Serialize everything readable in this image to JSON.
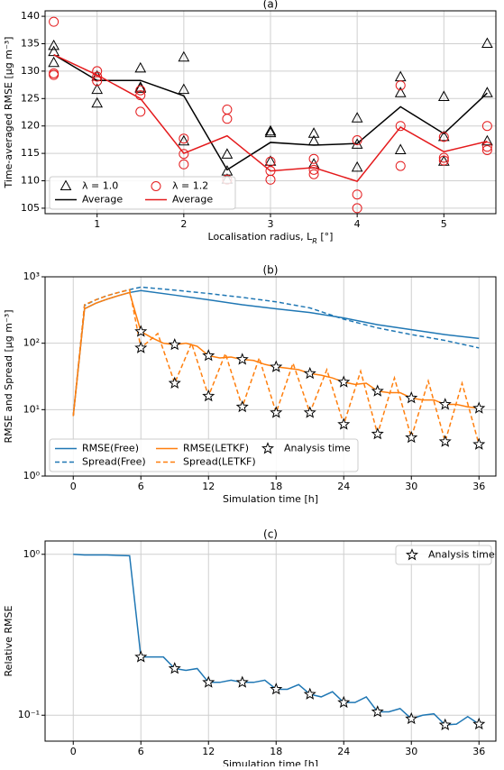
{
  "chart_data": [
    {
      "type": "line",
      "title": "(a)",
      "x_label": "Localisation radius, L_R [°]",
      "y_label": "Time-averaged RMSE [μg m⁻³]",
      "xlim": [
        0.4,
        5.6
      ],
      "ylim": [
        104,
        141
      ],
      "xticks": [
        1,
        2,
        3,
        4,
        5
      ],
      "yticks": [
        105,
        110,
        115,
        120,
        125,
        130,
        135,
        140
      ],
      "grid": true,
      "log": false,
      "legend_loc": "lower left",
      "series": [
        {
          "name": "λ = 1.0",
          "mode": "markers",
          "marker": "triangle",
          "color": "#000000",
          "x": [
            0.5,
            0.5,
            0.5,
            1,
            1,
            1,
            1.5,
            1.5,
            1.5,
            2,
            2,
            2,
            2.5,
            2.5,
            2.5,
            3,
            3,
            3,
            3.5,
            3.5,
            3.5,
            4,
            4,
            4,
            4.5,
            4.5,
            4.5,
            5,
            5,
            5,
            5.5,
            5.5,
            5.5
          ],
          "values": [
            134.6,
            133.5,
            131.5,
            129.0,
            126.6,
            124.1,
            130.5,
            127.0,
            126.8,
            132.5,
            126.6,
            117.2,
            114.8,
            111.7,
            110.2,
            119.0,
            118.7,
            113.5,
            118.6,
            117.2,
            113.0,
            121.4,
            116.6,
            112.4,
            128.9,
            126.0,
            115.6,
            125.3,
            118.0,
            113.5,
            135.0,
            126.0,
            117.2
          ]
        },
        {
          "name": "Average",
          "mode": "lines",
          "color": "#000000",
          "x": [
            0.5,
            1,
            1.5,
            2,
            2.5,
            3,
            3.5,
            4,
            4.5,
            5,
            5.5
          ],
          "values": [
            133.0,
            128.3,
            128.3,
            125.5,
            112.0,
            117.0,
            116.5,
            116.8,
            123.5,
            118.6,
            126.0
          ]
        },
        {
          "name": "λ = 1.2",
          "mode": "markers",
          "marker": "circle",
          "color": "#e41a1c",
          "x": [
            0.5,
            0.5,
            0.5,
            1,
            1,
            1,
            1.5,
            1.5,
            1.5,
            2,
            2,
            2,
            2.5,
            2.5,
            2.5,
            3,
            3,
            3,
            3.5,
            3.5,
            3.5,
            4,
            4,
            4,
            4.5,
            4.5,
            4.5,
            5,
            5,
            5,
            5.5,
            5.5,
            5.5
          ],
          "values": [
            139.0,
            129.6,
            129.3,
            130.0,
            129.0,
            128.2,
            126.5,
            125.6,
            122.6,
            117.7,
            114.9,
            113.0,
            123.0,
            121.3,
            110.2,
            113.5,
            111.8,
            110.2,
            114.0,
            112.0,
            111.2,
            117.4,
            107.5,
            105.0,
            127.4,
            120.0,
            112.7,
            118.0,
            114.2,
            113.7,
            120.0,
            116.2,
            115.6
          ]
        },
        {
          "name": "Average",
          "mode": "lines",
          "color": "#e41a1c",
          "x": [
            0.5,
            1,
            1.5,
            2,
            2.5,
            3,
            3.5,
            4,
            4.5,
            5,
            5.5
          ],
          "values": [
            133.0,
            129.3,
            125.0,
            115.0,
            118.2,
            111.8,
            112.4,
            109.9,
            119.8,
            115.3,
            117.2
          ]
        }
      ]
    },
    {
      "type": "line",
      "title": "(b)",
      "x_label": "Simulation time [h]",
      "y_label": "RMSE and Spread [μg m⁻³]",
      "xlim": [
        -2.5,
        37.5
      ],
      "ylim": [
        1,
        1000
      ],
      "xticks": [
        0,
        6,
        12,
        18,
        24,
        30,
        36
      ],
      "yticks": [
        {
          "value": 1,
          "label": "10⁰"
        },
        {
          "value": 10,
          "label": "10¹"
        },
        {
          "value": 100,
          "label": "10²"
        },
        {
          "value": 1000,
          "label": "10³"
        }
      ],
      "grid": true,
      "log": true,
      "legend_loc": "lower left",
      "series": [
        {
          "name": "RMSE(Free)",
          "mode": "lines",
          "color": "#1f77b4",
          "x": [
            0,
            1,
            2,
            3,
            4,
            5,
            6,
            9,
            12,
            15,
            18,
            21,
            24,
            27,
            30,
            33,
            36
          ],
          "values": [
            8,
            330,
            400,
            460,
            520,
            580,
            620,
            530,
            450,
            380,
            330,
            290,
            240,
            190,
            160,
            135,
            118
          ]
        },
        {
          "name": "Spread(Free)",
          "mode": "lines",
          "dash": true,
          "color": "#1f77b4",
          "x": [
            0,
            1,
            2,
            3,
            4,
            5,
            6,
            9,
            12,
            15,
            18,
            21,
            24,
            27,
            30,
            33,
            36
          ],
          "values": [
            8,
            370,
            450,
            520,
            580,
            640,
            700,
            630,
            560,
            490,
            420,
            340,
            230,
            170,
            135,
            110,
            85
          ]
        },
        {
          "name": "RMSE(LETKF)",
          "mode": "lines",
          "color": "#ff7f0e",
          "x": [
            0,
            1,
            2,
            3,
            4,
            5,
            6,
            7,
            8,
            9,
            10,
            11,
            12,
            13,
            14,
            15,
            16,
            17,
            18,
            19,
            20,
            21,
            22,
            23,
            24,
            25,
            26,
            27,
            28,
            29,
            30,
            31,
            32,
            33,
            34,
            35,
            36
          ],
          "values": [
            8,
            330,
            400,
            460,
            520,
            580,
            150,
            120,
            100,
            95,
            100,
            90,
            65,
            60,
            62,
            57,
            55,
            48,
            44,
            42,
            40,
            35,
            33,
            30,
            26,
            24,
            25,
            19,
            18,
            18,
            15,
            14,
            14,
            12,
            12,
            11,
            10.5
          ]
        },
        {
          "name": "Spread(LETKF)",
          "mode": "lines",
          "dash": true,
          "color": "#ff7f0e",
          "x": [
            0,
            1,
            2,
            3,
            4,
            5,
            6,
            7.5,
            9,
            10.5,
            12,
            13.5,
            15,
            16.5,
            18,
            19.5,
            21,
            22.5,
            24,
            25.5,
            27,
            28.5,
            30,
            31.5,
            33,
            34.5,
            36
          ],
          "values": [
            8,
            380,
            450,
            520,
            580,
            640,
            85,
            140,
            25,
            100,
            16,
            70,
            11,
            60,
            9,
            50,
            9,
            40,
            6,
            38,
            4.3,
            30,
            3.8,
            27,
            3.3,
            25,
            3
          ]
        },
        {
          "name": "Analysis time",
          "mode": "markers",
          "marker": "star",
          "color": "#000000",
          "x": [
            6,
            9,
            12,
            15,
            18,
            21,
            24,
            27,
            30,
            33,
            36,
            6,
            9,
            12,
            15,
            18,
            21,
            24,
            27,
            30,
            33,
            36
          ],
          "values": [
            150,
            95,
            65,
            57,
            44,
            35,
            26,
            19,
            15,
            12,
            10.5,
            85,
            25,
            16,
            11,
            9,
            9,
            6,
            4.3,
            3.8,
            3.3,
            3
          ]
        }
      ]
    },
    {
      "type": "line",
      "title": "(c)",
      "x_label": "Simulation time [h]",
      "y_label": "Relative RMSE",
      "xlim": [
        -2.5,
        37.5
      ],
      "ylim": [
        0.069,
        1.21
      ],
      "xticks": [
        0,
        6,
        12,
        18,
        24,
        30,
        36
      ],
      "yticks": [
        {
          "value": 0.1,
          "label": "10⁻¹"
        },
        {
          "value": 1,
          "label": "10⁰"
        }
      ],
      "grid": true,
      "log": true,
      "legend_loc": "upper right",
      "series": [
        {
          "mode": "lines",
          "color": "#1f77b4",
          "x": [
            0,
            1,
            2,
            3,
            4,
            5,
            6,
            7,
            8,
            9,
            10,
            11,
            12,
            13,
            14,
            15,
            16,
            17,
            18,
            19,
            20,
            21,
            22,
            23,
            24,
            25,
            26,
            27,
            28,
            29,
            30,
            31,
            32,
            33,
            34,
            35,
            36
          ],
          "values": [
            1.0,
            0.99,
            0.99,
            0.99,
            0.985,
            0.98,
            0.23,
            0.23,
            0.23,
            0.195,
            0.19,
            0.195,
            0.16,
            0.16,
            0.165,
            0.16,
            0.16,
            0.165,
            0.145,
            0.145,
            0.155,
            0.135,
            0.13,
            0.14,
            0.12,
            0.12,
            0.13,
            0.105,
            0.105,
            0.11,
            0.095,
            0.1,
            0.102,
            0.087,
            0.088,
            0.098,
            0.088
          ]
        },
        {
          "name": "Analysis time",
          "mode": "markers",
          "marker": "star",
          "color": "#000000",
          "x": [
            6,
            9,
            12,
            15,
            18,
            21,
            24,
            27,
            30,
            33,
            36
          ],
          "values": [
            0.23,
            0.195,
            0.16,
            0.16,
            0.145,
            0.135,
            0.12,
            0.105,
            0.095,
            0.087,
            0.088
          ]
        }
      ]
    }
  ]
}
